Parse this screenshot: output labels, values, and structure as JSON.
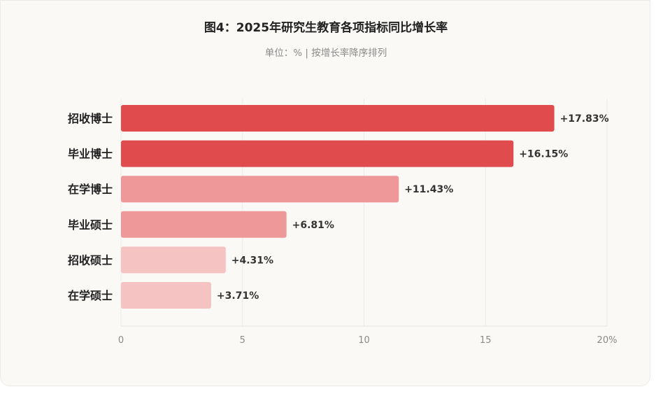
{
  "chart_data": {
    "type": "bar",
    "orientation": "horizontal",
    "title": "图4：2025年研究生教育各项指标同比增长率",
    "subtitle": "单位：% | 按增长率降序排列",
    "categories": [
      "招收博士",
      "毕业博士",
      "在学博士",
      "毕业硕士",
      "招收硕士",
      "在学硕士"
    ],
    "values": [
      17.83,
      16.15,
      11.43,
      6.81,
      4.31,
      3.71
    ],
    "value_labels": [
      "+17.83%",
      "+16.15%",
      "+11.43%",
      "+6.81%",
      "+4.31%",
      "+3.71%"
    ],
    "bar_colors": [
      "#e04b4d",
      "#e04b4d",
      "#ef9899",
      "#ef9899",
      "#f6c3c3",
      "#f6c3c3"
    ],
    "x_ticks": [
      0,
      5,
      10,
      15,
      20
    ],
    "x_tick_labels": [
      "0",
      "5",
      "10",
      "15",
      "20%"
    ],
    "xlim": [
      0,
      20
    ],
    "grid": true
  }
}
